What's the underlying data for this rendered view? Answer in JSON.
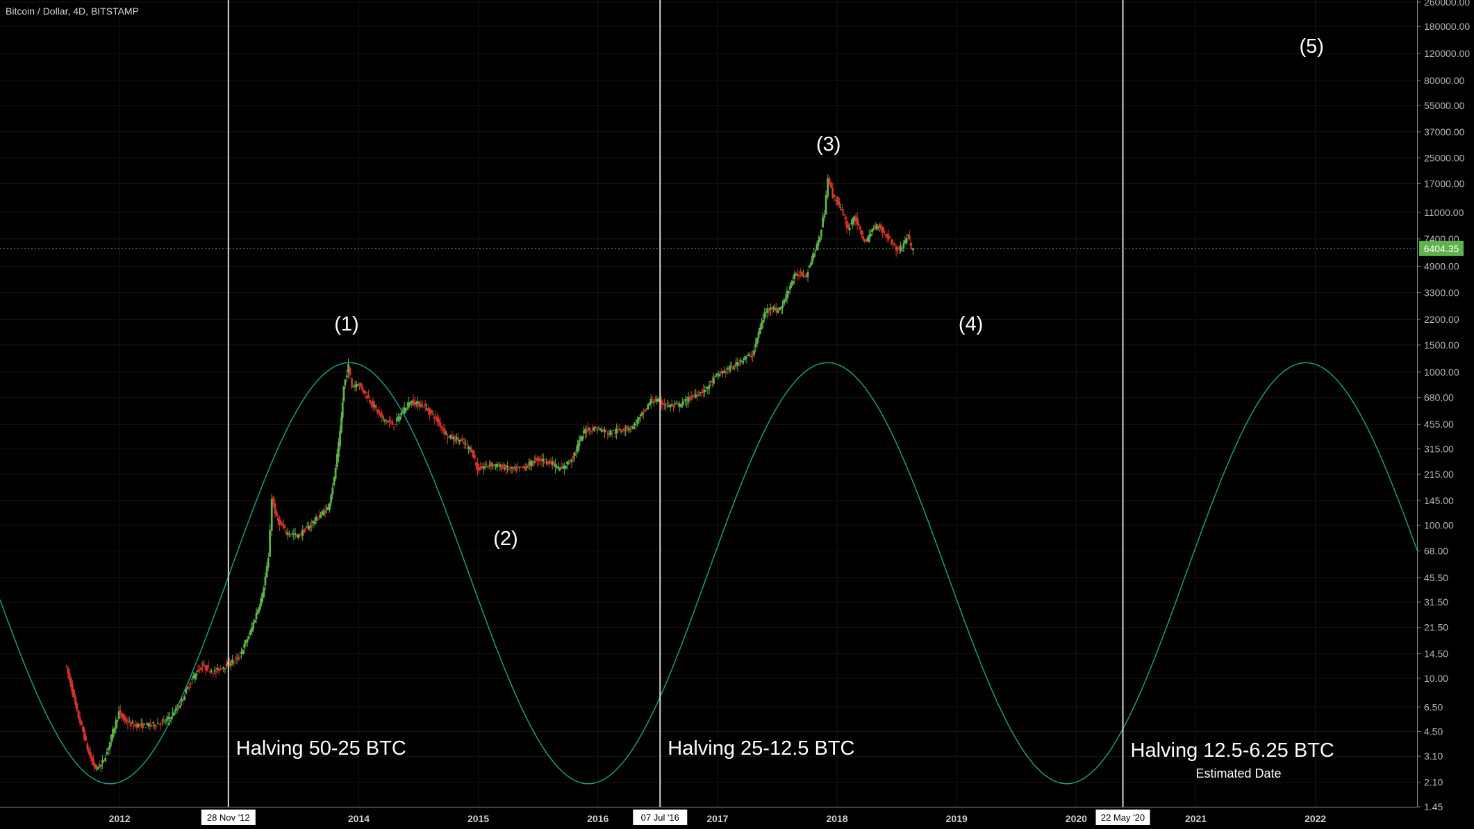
{
  "header": {
    "symbol": "Bitcoin / Dollar, 4D, BITSTAMP"
  },
  "colors": {
    "up": "#5fb34b",
    "down": "#d9342b",
    "sine": "#1a9c88",
    "line": "#d8d8d8",
    "price": "#5fb34b"
  },
  "chart_data": {
    "type": "candlestick",
    "title": "Bitcoin / Dollar, 4D, BITSTAMP",
    "yscale": "log",
    "ylim": [
      1.45,
      260000
    ],
    "xlim": [
      2011.0,
      2022.85
    ],
    "y_ticks": [
      "260000.00",
      "180000.00",
      "120000.00",
      "80000.00",
      "55000.00",
      "37000.00",
      "25000.00",
      "17000.00",
      "11000.00",
      "7400.00",
      "4900.00",
      "3300.00",
      "2200.00",
      "1500.00",
      "1000.00",
      "680.00",
      "455.00",
      "315.00",
      "215.00",
      "145.00",
      "100.00",
      "68.00",
      "45.50",
      "31.50",
      "21.50",
      "14.50",
      "10.00",
      "6.50",
      "4.50",
      "3.10",
      "2.10",
      "1.45"
    ],
    "x_ticks": [
      {
        "label": "2012",
        "x": 2012.0
      },
      {
        "label": "2014",
        "x": 2014.0
      },
      {
        "label": "2015",
        "x": 2015.0
      },
      {
        "label": "2016",
        "x": 2016.0
      },
      {
        "label": "2017",
        "x": 2017.0
      },
      {
        "label": "2018",
        "x": 2018.0
      },
      {
        "label": "2019",
        "x": 2019.0
      },
      {
        "label": "2020",
        "x": 2020.0
      },
      {
        "label": "2021",
        "x": 2021.0
      },
      {
        "label": "2022",
        "x": 2022.0
      }
    ],
    "current_price": {
      "label": "6404.35",
      "value": 6404.35
    },
    "halvings": [
      {
        "date_label": "28 Nov '12",
        "x": 2012.91,
        "text": "Halving 50-25 BTC"
      },
      {
        "date_label": "07 Jul '16",
        "x": 2016.52,
        "text": "Halving 25-12.5 BTC"
      },
      {
        "date_label": "22 May '20",
        "x": 2020.39,
        "text": "Halving 12.5-6.25 BTC",
        "note": "Estimated Date"
      }
    ],
    "wave_labels": [
      {
        "label": "(1)",
        "x": 2013.9,
        "y": 2000
      },
      {
        "label": "(2)",
        "x": 2015.23,
        "y": 80
      },
      {
        "label": "(3)",
        "x": 2017.93,
        "y": 30000
      },
      {
        "label": "(4)",
        "x": 2019.12,
        "y": 2000
      },
      {
        "label": "(5)",
        "x": 2021.97,
        "y": 130000
      }
    ],
    "sine_curve": {
      "period_years": 4.0,
      "peak_x": 2013.92,
      "peak_value": 1150,
      "trough_value": 2.05
    },
    "price_path": [
      [
        2011.55,
        12.5
      ],
      [
        2011.6,
        9
      ],
      [
        2011.65,
        6
      ],
      [
        2011.7,
        4.5
      ],
      [
        2011.75,
        3.2
      ],
      [
        2011.8,
        2.6
      ],
      [
        2011.85,
        2.7
      ],
      [
        2011.9,
        3.3
      ],
      [
        2011.95,
        4.5
      ],
      [
        2012.0,
        6
      ],
      [
        2012.05,
        5.3
      ],
      [
        2012.1,
        5.0
      ],
      [
        2012.2,
        4.9
      ],
      [
        2012.3,
        5.0
      ],
      [
        2012.4,
        5.3
      ],
      [
        2012.5,
        6.5
      ],
      [
        2012.6,
        9.5
      ],
      [
        2012.65,
        11
      ],
      [
        2012.7,
        12
      ],
      [
        2012.8,
        11
      ],
      [
        2012.9,
        12.3
      ],
      [
        2013.0,
        13.5
      ],
      [
        2013.1,
        20
      ],
      [
        2013.2,
        35
      ],
      [
        2013.25,
        60
      ],
      [
        2013.28,
        150
      ],
      [
        2013.32,
        110
      ],
      [
        2013.4,
        90
      ],
      [
        2013.5,
        85
      ],
      [
        2013.6,
        100
      ],
      [
        2013.7,
        120
      ],
      [
        2013.75,
        130
      ],
      [
        2013.8,
        200
      ],
      [
        2013.85,
        400
      ],
      [
        2013.88,
        800
      ],
      [
        2013.92,
        1100
      ],
      [
        2013.95,
        800
      ],
      [
        2014.0,
        850
      ],
      [
        2014.1,
        650
      ],
      [
        2014.2,
        500
      ],
      [
        2014.3,
        450
      ],
      [
        2014.4,
        600
      ],
      [
        2014.45,
        640
      ],
      [
        2014.55,
        600
      ],
      [
        2014.65,
        500
      ],
      [
        2014.75,
        380
      ],
      [
        2014.85,
        360
      ],
      [
        2014.95,
        310
      ],
      [
        2015.0,
        230
      ],
      [
        2015.1,
        250
      ],
      [
        2015.2,
        240
      ],
      [
        2015.3,
        230
      ],
      [
        2015.4,
        240
      ],
      [
        2015.5,
        270
      ],
      [
        2015.6,
        260
      ],
      [
        2015.7,
        230
      ],
      [
        2015.8,
        280
      ],
      [
        2015.85,
        350
      ],
      [
        2015.9,
        420
      ],
      [
        2016.0,
        430
      ],
      [
        2016.1,
        400
      ],
      [
        2016.2,
        420
      ],
      [
        2016.3,
        440
      ],
      [
        2016.4,
        560
      ],
      [
        2016.45,
        650
      ],
      [
        2016.5,
        650
      ],
      [
        2016.6,
        600
      ],
      [
        2016.7,
        610
      ],
      [
        2016.8,
        700
      ],
      [
        2016.9,
        760
      ],
      [
        2017.0,
        950
      ],
      [
        2017.05,
        1000
      ],
      [
        2017.15,
        1100
      ],
      [
        2017.2,
        1200
      ],
      [
        2017.3,
        1300
      ],
      [
        2017.35,
        1800
      ],
      [
        2017.4,
        2400
      ],
      [
        2017.45,
        2700
      ],
      [
        2017.5,
        2500
      ],
      [
        2017.55,
        2700
      ],
      [
        2017.6,
        3500
      ],
      [
        2017.65,
        4200
      ],
      [
        2017.7,
        4400
      ],
      [
        2017.75,
        4300
      ],
      [
        2017.8,
        5700
      ],
      [
        2017.85,
        7000
      ],
      [
        2017.9,
        11000
      ],
      [
        2017.93,
        19000
      ],
      [
        2017.97,
        14000
      ],
      [
        2018.0,
        13500
      ],
      [
        2018.05,
        11000
      ],
      [
        2018.1,
        8500
      ],
      [
        2018.15,
        10500
      ],
      [
        2018.2,
        8200
      ],
      [
        2018.25,
        7000
      ],
      [
        2018.3,
        8500
      ],
      [
        2018.35,
        9200
      ],
      [
        2018.4,
        8000
      ],
      [
        2018.45,
        7400
      ],
      [
        2018.5,
        6300
      ],
      [
        2018.55,
        6500
      ],
      [
        2018.6,
        8000
      ],
      [
        2018.62,
        6500
      ],
      [
        2018.64,
        6404
      ]
    ]
  }
}
